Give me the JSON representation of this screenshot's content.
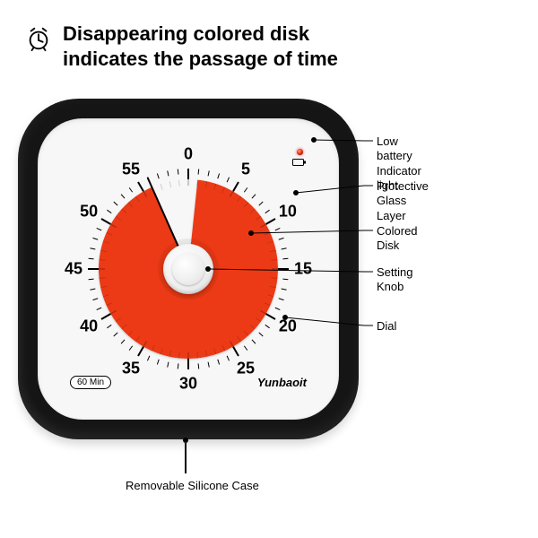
{
  "header": {
    "line1": "Disappearing colored disk",
    "line2": "indicates the passage of time"
  },
  "device": {
    "case_color": "#151515",
    "panel_color": "#f7f7f7",
    "disk_color": "#ec3a16",
    "disk_remaining_start_deg": 6,
    "disk_remaining_end_deg": 336,
    "pointer_angle_deg": 336,
    "numbers": [
      "0",
      "5",
      "10",
      "15",
      "20",
      "25",
      "30",
      "35",
      "40",
      "45",
      "50",
      "55"
    ],
    "number_fontsize": 18,
    "sixty_label": "60 Min",
    "brand": "Yunbaoit",
    "led_color": "#e2230a"
  },
  "callouts": {
    "right": [
      {
        "label_line1": "Low battery",
        "label_line2": "Indicator light"
      },
      {
        "label_line1": "Protective",
        "label_line2": "Glass Layer"
      },
      {
        "label_line1": "Colored Disk",
        "label_line2": ""
      },
      {
        "label_line1": "Setting Knob",
        "label_line2": ""
      },
      {
        "label_line1": "Dial",
        "label_line2": ""
      }
    ],
    "bottom": {
      "label": "Removable Silicone Case"
    }
  },
  "colors": {
    "text": "#000000",
    "bg": "#ffffff",
    "line": "#000000"
  }
}
